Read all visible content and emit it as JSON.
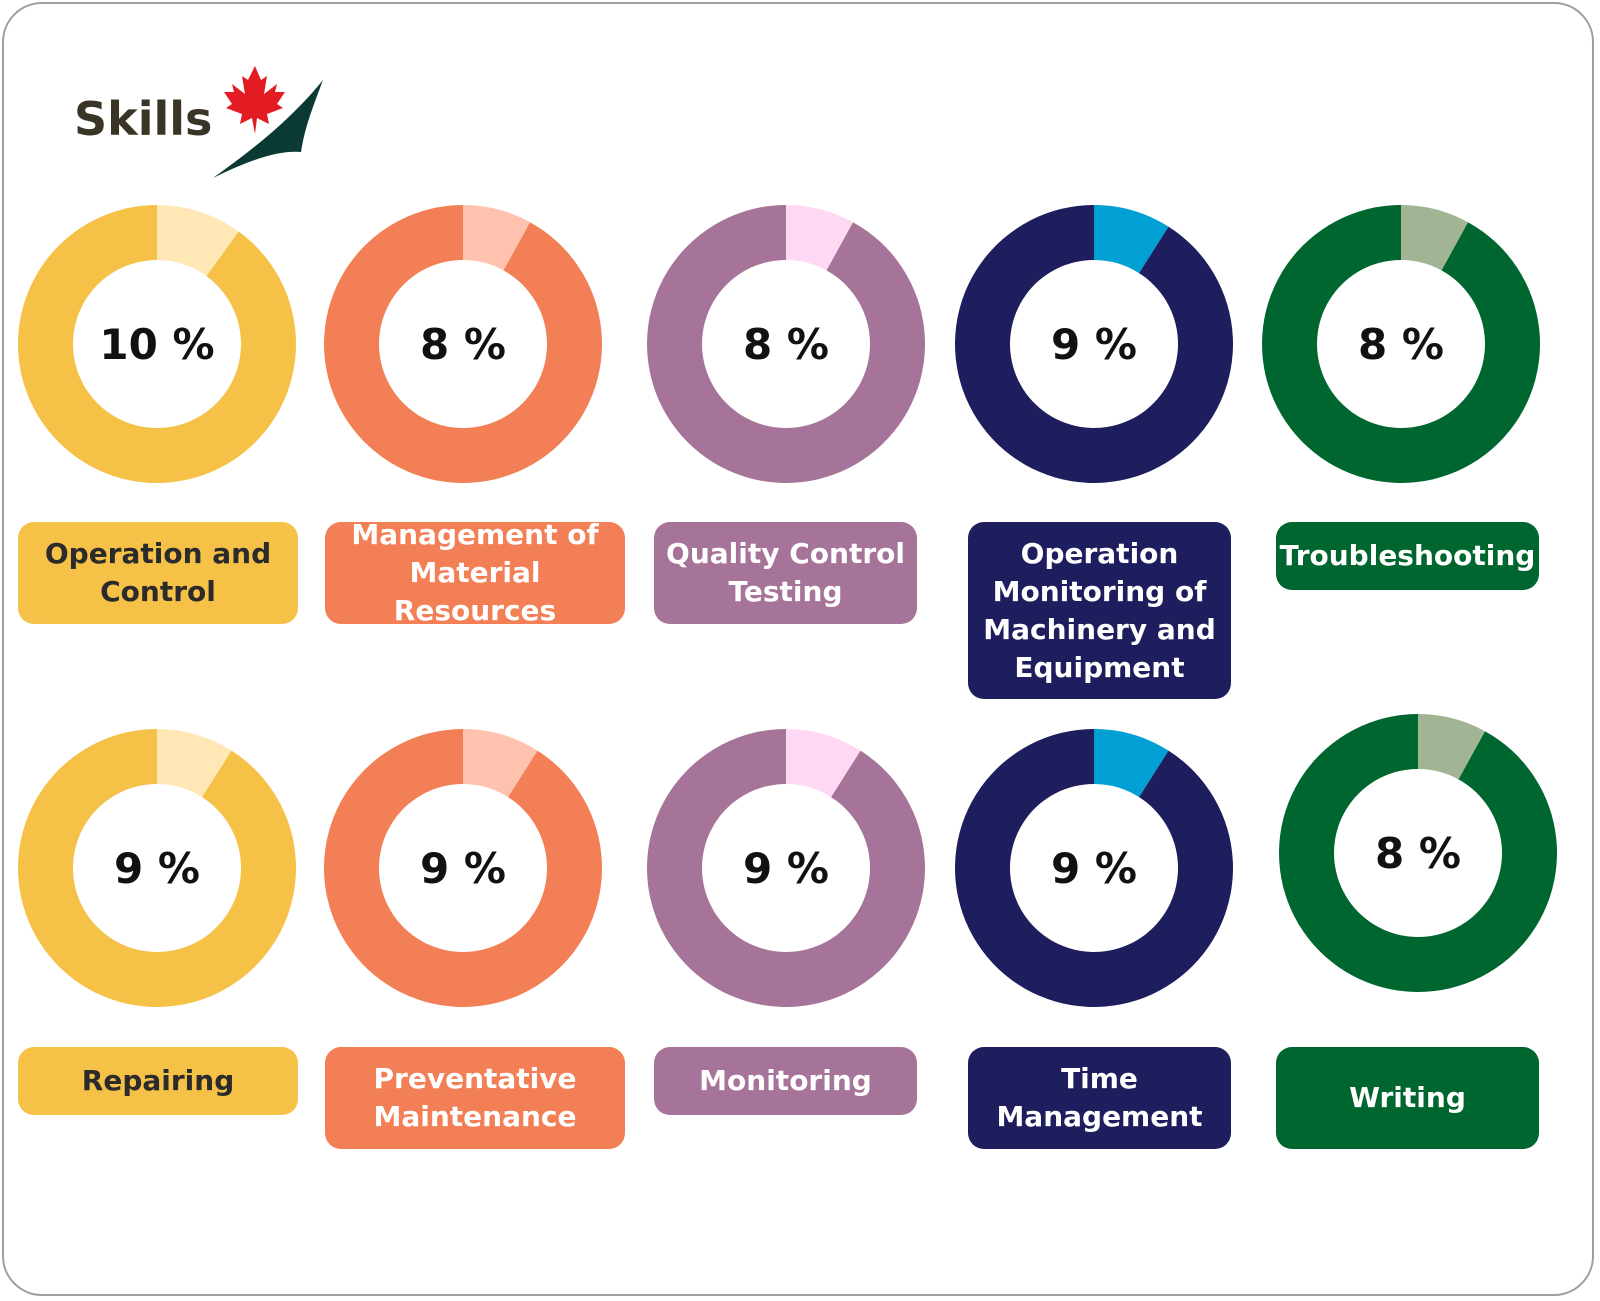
{
  "logo": {
    "text": "Skills",
    "icon": "maple-leaf-swoosh-icon"
  },
  "chart_data": {
    "type": "pie",
    "subtype": "donut-grid",
    "items": [
      {
        "label": "Operation and Control",
        "value": 10,
        "value_text": "10 %",
        "color": "#F5C146",
        "highlight": "#FFE8B5",
        "text_color": "#2b2b2b"
      },
      {
        "label": "Management of Material Resources",
        "value": 8,
        "value_text": "8 %",
        "color": "#F27F55",
        "highlight": "#FFC2AE",
        "text_color": "#ffffff"
      },
      {
        "label": "Quality Control Testing",
        "value": 8,
        "value_text": "8 %",
        "color": "#A67499",
        "highlight": "#FFD9F3",
        "text_color": "#ffffff"
      },
      {
        "label": "Operation Monitoring of Machinery and Equipment",
        "value": 9,
        "value_text": "9 %",
        "color": "#1E1E5E",
        "highlight": "#009FD4",
        "text_color": "#ffffff"
      },
      {
        "label": "Troubleshooting",
        "value": 8,
        "value_text": "8 %",
        "color": "#00662F",
        "highlight": "#A1B493",
        "text_color": "#ffffff"
      },
      {
        "label": "Repairing",
        "value": 9,
        "value_text": "9 %",
        "color": "#F5C146",
        "highlight": "#FFE8B5",
        "text_color": "#2b2b2b"
      },
      {
        "label": "Preventative Maintenance",
        "value": 9,
        "value_text": "9 %",
        "color": "#F27F55",
        "highlight": "#FFC2AE",
        "text_color": "#ffffff"
      },
      {
        "label": "Monitoring",
        "value": 9,
        "value_text": "9 %",
        "color": "#A67499",
        "highlight": "#FFD9F3",
        "text_color": "#ffffff"
      },
      {
        "label": "Time Management",
        "value": 9,
        "value_text": "9 %",
        "color": "#1E1E5E",
        "highlight": "#009FD4",
        "text_color": "#ffffff"
      },
      {
        "label": "Writing",
        "value": 8,
        "value_text": "8 %",
        "color": "#00662F",
        "highlight": "#A1B493",
        "text_color": "#ffffff"
      }
    ]
  }
}
